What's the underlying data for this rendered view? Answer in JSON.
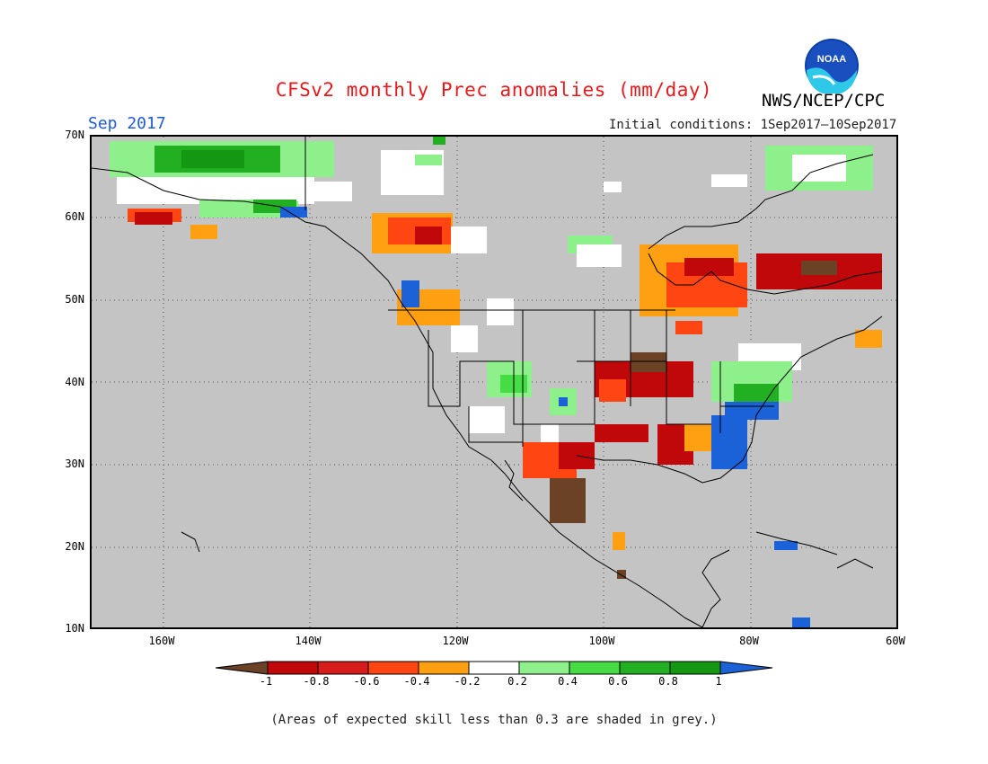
{
  "header": {
    "title": "CFSv2 monthly Prec anomalies (mm/day)",
    "month": "Sep 2017",
    "initial_conditions": "Initial conditions: 1Sep2017–10Sep2017",
    "agency": "NWS/NCEP/CPC",
    "logo_text": "NOAA"
  },
  "map": {
    "lat_labels": [
      "70N",
      "60N",
      "50N",
      "40N",
      "30N",
      "20N",
      "10N"
    ],
    "lon_labels": [
      "160W",
      "140W",
      "120W",
      "100W",
      "80W",
      "60W"
    ],
    "lat_range": [
      10,
      70
    ],
    "lon_range": [
      -170,
      -60
    ],
    "grid": "dotted",
    "background_color": "#c4c4c4"
  },
  "colorbar": {
    "labels": [
      "-1",
      "-0.8",
      "-0.6",
      "-0.4",
      "-0.2",
      "0.2",
      "0.4",
      "0.6",
      "0.8",
      "1"
    ],
    "colors": [
      "#6b4226",
      "#c0080a",
      "#d71c1c",
      "#ff4512",
      "#ff9f12",
      "#ffffff",
      "#8ef08a",
      "#46dc46",
      "#22b022",
      "#149814",
      "#1b62d8"
    ]
  },
  "footnote": "(Areas of expected skill less than 0.3 are shaded in grey.)"
}
